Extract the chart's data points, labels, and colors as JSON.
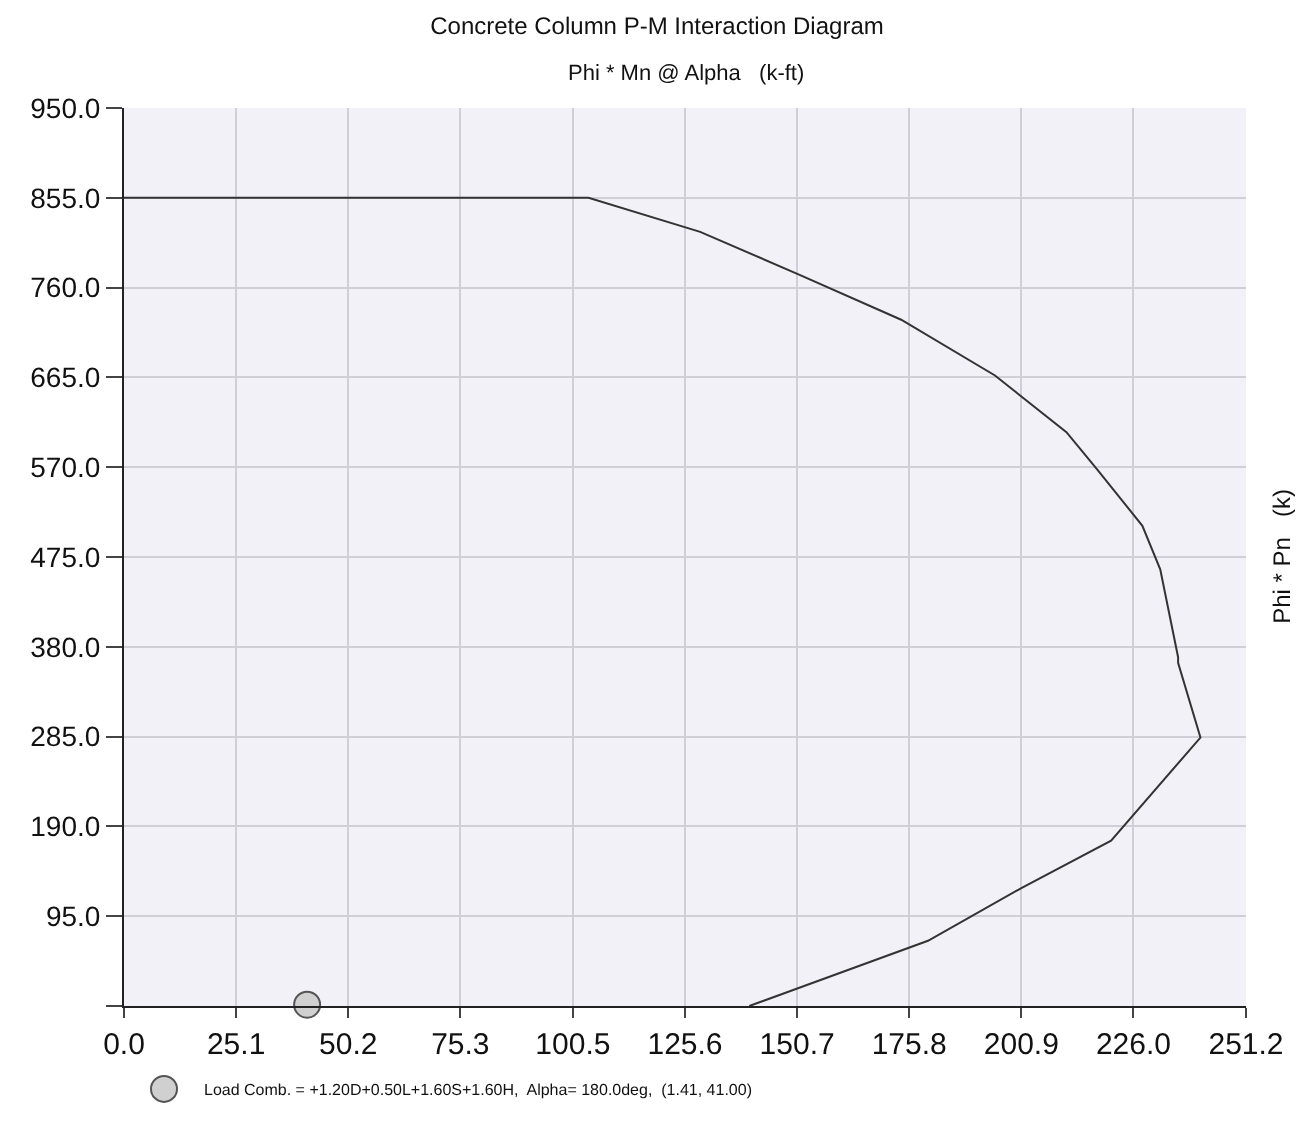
{
  "chart_data": {
    "type": "line",
    "title": "Concrete Column P-M Interaction Diagram",
    "xlabel": "Phi * Mn @ Alpha   (k-ft)",
    "ylabel": "Phi * Pn   (k)",
    "xlim": [
      0,
      251.2
    ],
    "ylim": [
      0,
      950
    ],
    "xticks": [
      {
        "value": 0,
        "label": "0.0"
      },
      {
        "value": 25.1,
        "label": "25.1"
      },
      {
        "value": 50.2,
        "label": "50.2"
      },
      {
        "value": 75.3,
        "label": "75.3"
      },
      {
        "value": 100.5,
        "label": "100.5"
      },
      {
        "value": 125.6,
        "label": "125.6"
      },
      {
        "value": 150.7,
        "label": "150.7"
      },
      {
        "value": 175.8,
        "label": "175.8"
      },
      {
        "value": 200.9,
        "label": "200.9"
      },
      {
        "value": 226,
        "label": "226.0"
      },
      {
        "value": 251.2,
        "label": "251.2"
      }
    ],
    "yticks": [
      {
        "value": 0,
        "label": null
      },
      {
        "value": 95,
        "label": "95.0"
      },
      {
        "value": 190,
        "label": "190.0"
      },
      {
        "value": 285,
        "label": "285.0"
      },
      {
        "value": 380,
        "label": "380.0"
      },
      {
        "value": 475,
        "label": "475.0"
      },
      {
        "value": 570,
        "label": "570.0"
      },
      {
        "value": 665,
        "label": "665.0"
      },
      {
        "value": 760,
        "label": "760.0"
      },
      {
        "value": 855,
        "label": "855.0"
      },
      {
        "value": 950,
        "label": "950.0"
      }
    ],
    "grid": true,
    "legend": "bottom left",
    "series": [
      {
        "type": "line",
        "color": "#333333",
        "marker": "none",
        "x": [
          0,
          104,
          129,
          151,
          174,
          195,
          211,
          218,
          228,
          232,
          236,
          236,
          241,
          221,
          201,
          180,
          140
        ],
        "values": [
          855,
          855,
          819,
          774,
          726,
          667,
          607,
          567,
          508,
          462,
          369,
          363,
          284,
          175,
          125,
          69,
          0
        ]
      },
      {
        "type": "scatter",
        "name": "Load Comb. = +1.20D+0.50L+1.60S+1.60H,  Alpha= 180.0deg,  (1.41, 41.00)",
        "color": "#d0d0d0",
        "marker": "circle",
        "x": [
          41
        ],
        "values": [
          1.41
        ]
      }
    ]
  }
}
